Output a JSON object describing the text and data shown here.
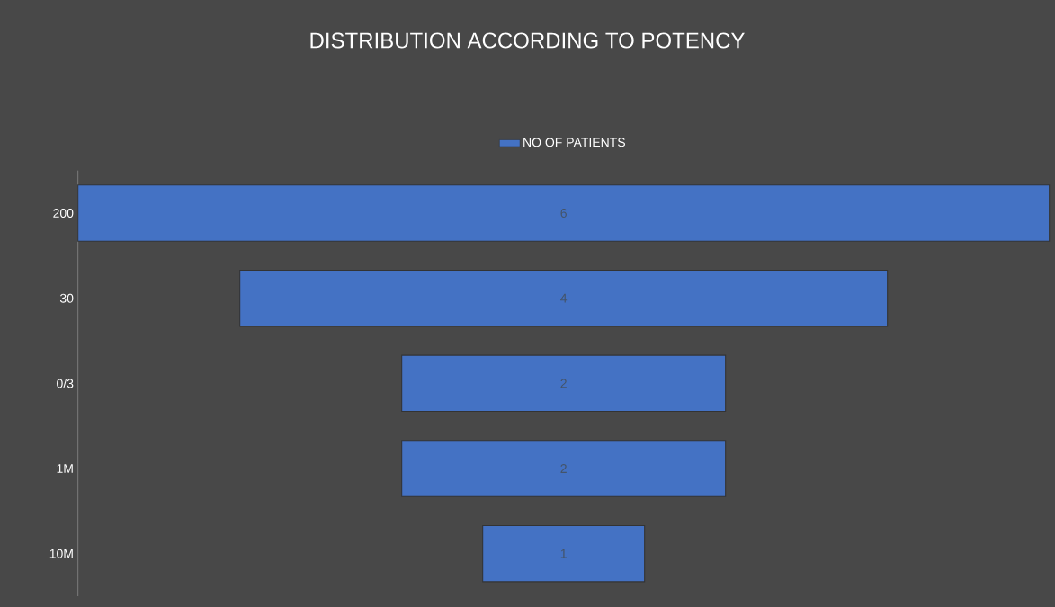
{
  "chart_data": {
    "type": "other",
    "title": "DISTRIBUTION ACCORDING TO POTENCY",
    "categories": [
      "200",
      "30",
      "0/3",
      "1M",
      "10M"
    ],
    "series": [
      {
        "name": "NO OF PATIENTS",
        "color": "#4472c4",
        "values": [
          6,
          4,
          2,
          2,
          1
        ]
      }
    ],
    "data_labels": true,
    "legend": "top"
  }
}
